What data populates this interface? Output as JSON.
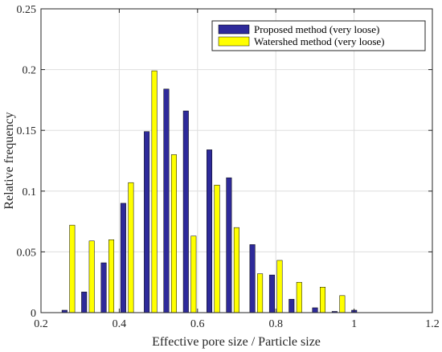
{
  "chart_data": {
    "type": "bar",
    "x": [
      0.27,
      0.32,
      0.37,
      0.42,
      0.48,
      0.53,
      0.58,
      0.64,
      0.69,
      0.75,
      0.8,
      0.85,
      0.91,
      0.96,
      1.01,
      1.07,
      1.12
    ],
    "series": [
      {
        "name": "Proposed method (very loose)",
        "color": "#2e2a9a",
        "values": [
          0.002,
          0.017,
          0.041,
          0.09,
          0.149,
          0.184,
          0.166,
          0.134,
          0.111,
          0.056,
          0.031,
          0.011,
          0.004,
          0.001,
          0.002,
          null,
          null
        ]
      },
      {
        "name": "Watershed method (very loose)",
        "color": "#ffff00",
        "values": [
          0.072,
          0.059,
          0.06,
          0.107,
          0.199,
          0.13,
          0.063,
          0.105,
          0.07,
          0.032,
          0.043,
          0.025,
          0.021,
          0.014,
          null,
          null,
          null
        ]
      }
    ],
    "xlabel": "Effective pore size / Particle size",
    "ylabel": "Relative frequency",
    "xlim": [
      0.2,
      1.2
    ],
    "ylim": [
      0,
      0.25
    ],
    "xticks": [
      "0.2",
      "0.4",
      "0.6",
      "0.8",
      "1",
      "1.2"
    ],
    "yticks": [
      "0",
      "0.05",
      "0.1",
      "0.15",
      "0.2",
      "0.25"
    ],
    "grid": true,
    "legend_position": "top-right"
  }
}
